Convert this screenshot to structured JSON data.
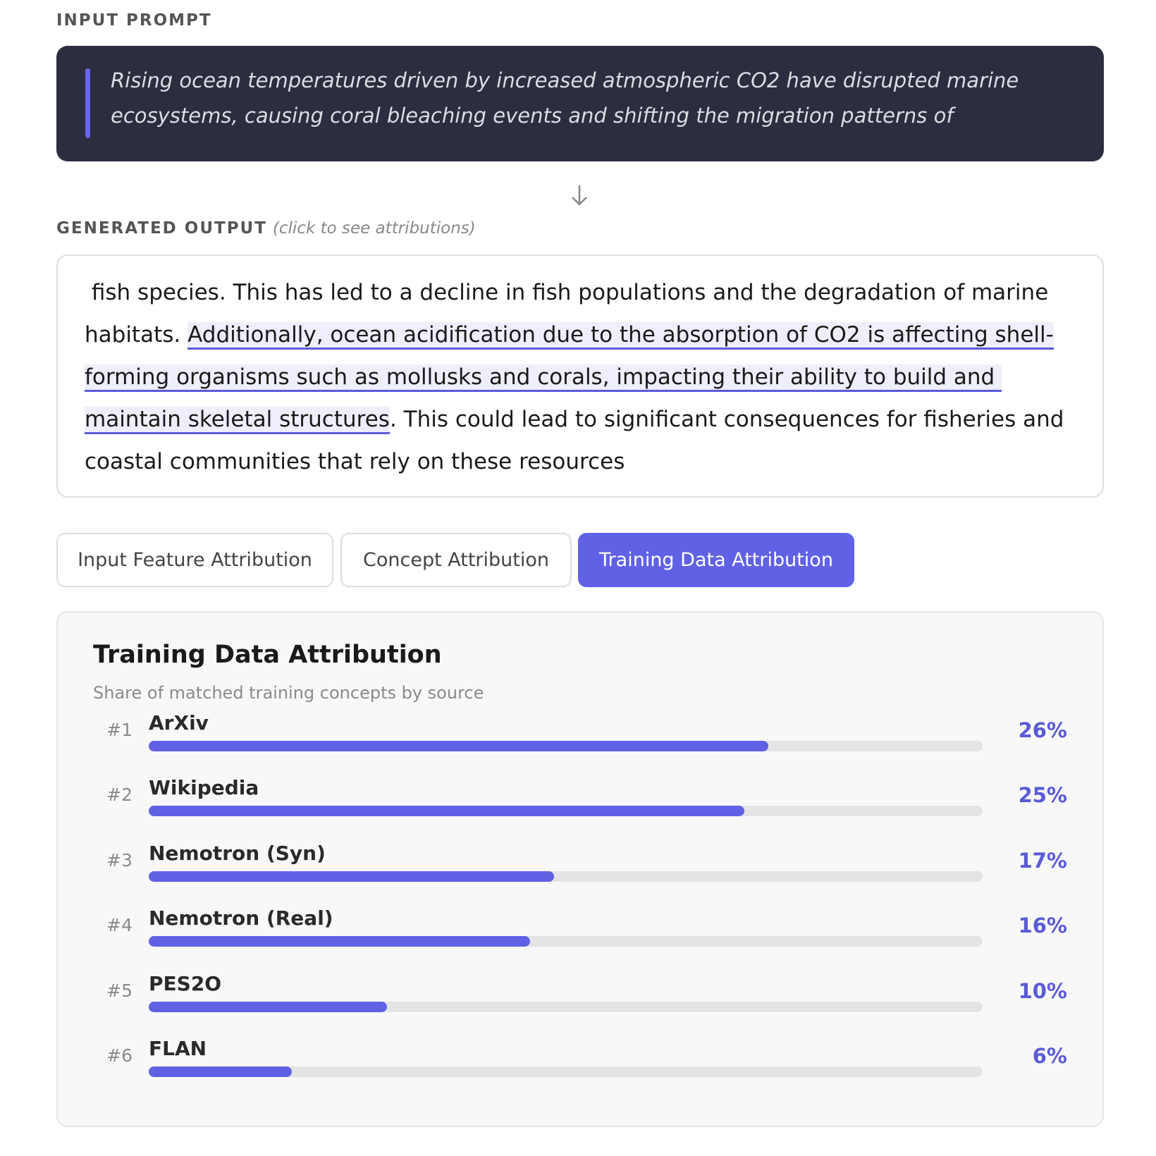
{
  "input_section": {
    "label": "INPUT PROMPT",
    "prompt": "Rising ocean temperatures driven by increased atmospheric CO2 have disrupted marine ecosystems, causing coral bleaching events and shifting the migration patterns of"
  },
  "output_section": {
    "label": "GENERATED OUTPUT",
    "hint": "(click to see attributions)",
    "text_before": " fish species. This has led to a decline in fish populations and the degradation of marine habitats. ",
    "text_highlighted": "Additionally, ocean acidification due to the absorption of CO2 is affecting shell-forming organisms such as mollusks and corals, impacting their ability to build and maintain skeletal structures",
    "text_after": ". This could lead to significant consequences for fisheries and coastal communities that rely on these resources"
  },
  "tabs": [
    "Input Feature Attribution",
    "Concept Attribution",
    "Training Data Attribution"
  ],
  "active_tab": 2,
  "chart_data": {
    "type": "bar",
    "orientation": "horizontal",
    "title": "Training Data Attribution",
    "subtitle": "Share of matched training concepts by source",
    "ranks": [
      "#1",
      "#2",
      "#3",
      "#4",
      "#5",
      "#6"
    ],
    "categories": [
      "ArXiv",
      "Wikipedia",
      "Nemotron (Syn)",
      "Nemotron (Real)",
      "PES2O",
      "FLAN"
    ],
    "values": [
      26,
      25,
      17,
      16,
      10,
      6
    ],
    "value_labels": [
      "26%",
      "25%",
      "17%",
      "16%",
      "10%",
      "6%"
    ],
    "xlim": [
      0,
      35
    ],
    "color": "#6161e6"
  }
}
